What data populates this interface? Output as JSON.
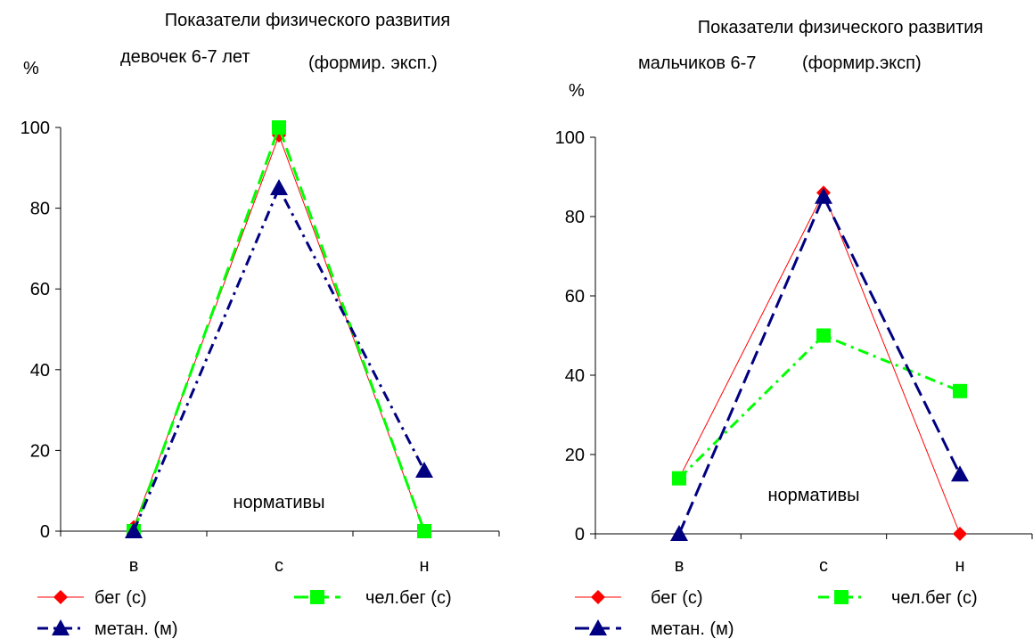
{
  "chart_data": [
    {
      "type": "line",
      "title_line1": "Показатели физического развития",
      "title_line2a": "девочек 6-7 лет",
      "title_line2b": "(формир. эксп.)",
      "ylabel": "%",
      "annotation": "нормативы",
      "categories": [
        "в",
        "с",
        "н"
      ],
      "ylim": [
        0,
        100
      ],
      "yticks": [
        0,
        20,
        40,
        60,
        80,
        100
      ],
      "series": [
        {
          "name": "бег (с)",
          "values": [
            1,
            98,
            0
          ],
          "color": "#ff0000",
          "marker": "diamond",
          "dash": "solid"
        },
        {
          "name": "чел.бег (с)",
          "values": [
            0,
            100,
            0
          ],
          "color": "#00ff00",
          "marker": "square",
          "dash": "long-dash"
        },
        {
          "name": "метан. (м)",
          "values": [
            0,
            85,
            15
          ],
          "color": "#000080",
          "marker": "triangle",
          "dash": "dash-dot"
        }
      ],
      "legend_position": "bottom"
    },
    {
      "type": "line",
      "title_line1": "Показатели физического развития",
      "title_line2a": "мальчиков 6-7",
      "title_line2b": "(формир.эксп)",
      "ylabel": "%",
      "annotation": "нормативы",
      "categories": [
        "в",
        "с",
        "н"
      ],
      "ylim": [
        0,
        100
      ],
      "yticks": [
        0,
        20,
        40,
        60,
        80,
        100
      ],
      "series": [
        {
          "name": "бег (с)",
          "values": [
            14,
            86,
            0
          ],
          "color": "#ff0000",
          "marker": "diamond",
          "dash": "solid"
        },
        {
          "name": "чел.бег (с)",
          "values": [
            14,
            50,
            36
          ],
          "color": "#00ff00",
          "marker": "square",
          "dash": "dash-dot"
        },
        {
          "name": "метан. (м)",
          "values": [
            0,
            85,
            15
          ],
          "color": "#000080",
          "marker": "triangle",
          "dash": "long-dash"
        }
      ],
      "legend_position": "bottom"
    }
  ]
}
